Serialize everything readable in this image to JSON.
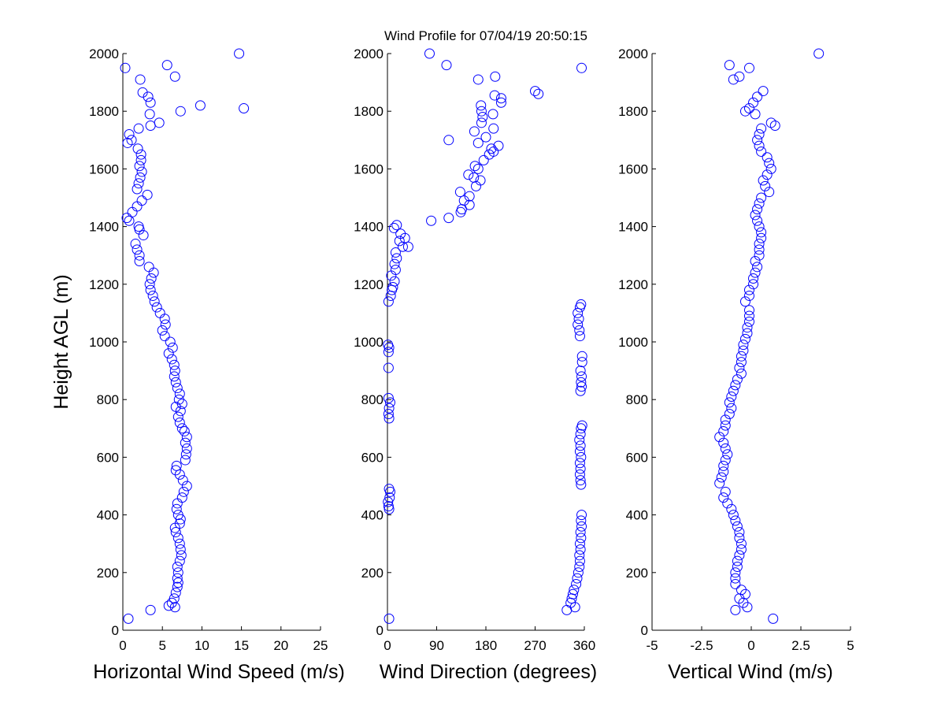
{
  "figure": {
    "title": "Wind Profile for  07/04/19 20:50:15",
    "ylabel": "Height AGL (m)"
  },
  "colors": {
    "marker": "#0000ff",
    "axis": "#000000",
    "background": "#ffffff"
  },
  "chart_data": [
    {
      "type": "scatter",
      "title": "Wind Profile for  07/04/19 20:50:15",
      "xlabel": "Horizontal Wind Speed (m/s)",
      "ylabel": "Height AGL (m)",
      "xlim": [
        0,
        25
      ],
      "ylim": [
        0,
        2000
      ],
      "xticks": [
        0,
        5,
        10,
        15,
        20,
        25
      ],
      "yticks": [
        0,
        200,
        400,
        600,
        800,
        1000,
        1200,
        1400,
        1600,
        1800,
        2000
      ],
      "xtick_labels": [
        "0",
        "5",
        "10",
        "15",
        "20",
        "25"
      ],
      "ytick_labels": [
        "0",
        "200",
        "400",
        "600",
        "800",
        "1000",
        "1200",
        "1400",
        "1600",
        "1800",
        "2000"
      ],
      "grid": false,
      "points": [
        [
          0.7,
          40
        ],
        [
          3.5,
          70
        ],
        [
          5.8,
          85
        ],
        [
          6.6,
          80
        ],
        [
          6.2,
          95
        ],
        [
          6.5,
          110
        ],
        [
          6.7,
          130
        ],
        [
          6.9,
          150
        ],
        [
          7.0,
          165
        ],
        [
          6.9,
          180
        ],
        [
          7.0,
          200
        ],
        [
          6.9,
          220
        ],
        [
          7.2,
          240
        ],
        [
          7.4,
          260
        ],
        [
          7.3,
          280
        ],
        [
          7.2,
          300
        ],
        [
          7.0,
          320
        ],
        [
          6.7,
          340
        ],
        [
          6.6,
          355
        ],
        [
          7.2,
          370
        ],
        [
          7.3,
          385
        ],
        [
          7.0,
          400
        ],
        [
          6.8,
          420
        ],
        [
          6.9,
          440
        ],
        [
          7.5,
          460
        ],
        [
          7.7,
          480
        ],
        [
          8.1,
          500
        ],
        [
          7.6,
          520
        ],
        [
          7.2,
          540
        ],
        [
          6.7,
          555
        ],
        [
          6.8,
          570
        ],
        [
          7.9,
          590
        ],
        [
          8.0,
          610
        ],
        [
          8.1,
          630
        ],
        [
          7.9,
          650
        ],
        [
          8.1,
          670
        ],
        [
          7.8,
          690
        ],
        [
          7.5,
          700
        ],
        [
          7.2,
          720
        ],
        [
          7.0,
          740
        ],
        [
          7.3,
          760
        ],
        [
          6.7,
          775
        ],
        [
          7.5,
          785
        ],
        [
          7.1,
          800
        ],
        [
          7.2,
          820
        ],
        [
          6.9,
          840
        ],
        [
          6.7,
          860
        ],
        [
          6.5,
          880
        ],
        [
          6.6,
          900
        ],
        [
          6.5,
          920
        ],
        [
          6.2,
          940
        ],
        [
          5.8,
          960
        ],
        [
          6.3,
          980
        ],
        [
          6.0,
          1000
        ],
        [
          5.3,
          1020
        ],
        [
          5.0,
          1040
        ],
        [
          5.4,
          1060
        ],
        [
          5.3,
          1080
        ],
        [
          4.7,
          1100
        ],
        [
          4.3,
          1120
        ],
        [
          4.0,
          1140
        ],
        [
          3.8,
          1160
        ],
        [
          3.5,
          1180
        ],
        [
          3.4,
          1200
        ],
        [
          3.6,
          1220
        ],
        [
          3.9,
          1240
        ],
        [
          3.3,
          1260
        ],
        [
          2.1,
          1280
        ],
        [
          2.1,
          1300
        ],
        [
          1.8,
          1320
        ],
        [
          1.6,
          1340
        ],
        [
          2.6,
          1370
        ],
        [
          2.1,
          1390
        ],
        [
          2.0,
          1400
        ],
        [
          0.8,
          1420
        ],
        [
          0.5,
          1430
        ],
        [
          1.2,
          1450
        ],
        [
          1.8,
          1470
        ],
        [
          2.4,
          1490
        ],
        [
          3.1,
          1510
        ],
        [
          1.8,
          1530
        ],
        [
          2.0,
          1550
        ],
        [
          2.2,
          1570
        ],
        [
          2.4,
          1590
        ],
        [
          2.1,
          1610
        ],
        [
          2.3,
          1630
        ],
        [
          2.3,
          1650
        ],
        [
          1.9,
          1670
        ],
        [
          0.6,
          1690
        ],
        [
          1.1,
          1700
        ],
        [
          0.8,
          1720
        ],
        [
          2.0,
          1740
        ],
        [
          3.5,
          1750
        ],
        [
          4.6,
          1760
        ],
        [
          3.4,
          1790
        ],
        [
          7.3,
          1800
        ],
        [
          15.3,
          1810
        ],
        [
          9.8,
          1820
        ],
        [
          3.5,
          1830
        ],
        [
          3.2,
          1850
        ],
        [
          2.5,
          1865
        ],
        [
          2.2,
          1910
        ],
        [
          6.6,
          1920
        ],
        [
          0.3,
          1950
        ],
        [
          5.6,
          1960
        ],
        [
          14.7,
          2000
        ]
      ]
    },
    {
      "type": "scatter",
      "xlabel": "Wind Direction (degrees)",
      "xlim": [
        0,
        360
      ],
      "ylim": [
        0,
        2000
      ],
      "xticks": [
        0,
        90,
        180,
        270,
        360
      ],
      "yticks": [
        0,
        200,
        400,
        600,
        800,
        1000,
        1200,
        1400,
        1600,
        1800,
        2000
      ],
      "xtick_labels": [
        "0",
        "90",
        "180",
        "270",
        "360"
      ],
      "ytick_labels": [
        "0",
        "200",
        "400",
        "600",
        "800",
        "1000",
        "1200",
        "1400",
        "1600",
        "1800",
        "2000"
      ],
      "grid": false,
      "points": [
        [
          3,
          40
        ],
        [
          328,
          70
        ],
        [
          343,
          80
        ],
        [
          335,
          95
        ],
        [
          337,
          110
        ],
        [
          339,
          125
        ],
        [
          341,
          140
        ],
        [
          345,
          160
        ],
        [
          347,
          180
        ],
        [
          349,
          200
        ],
        [
          351,
          220
        ],
        [
          352,
          240
        ],
        [
          351,
          260
        ],
        [
          353,
          280
        ],
        [
          352,
          300
        ],
        [
          354,
          320
        ],
        [
          353,
          340
        ],
        [
          355,
          360
        ],
        [
          354,
          380
        ],
        [
          355,
          400
        ],
        [
          3,
          420
        ],
        [
          2,
          430
        ],
        [
          1,
          445
        ],
        [
          4,
          460
        ],
        [
          5,
          480
        ],
        [
          3,
          490
        ],
        [
          354,
          505
        ],
        [
          353,
          520
        ],
        [
          352,
          540
        ],
        [
          353,
          560
        ],
        [
          352,
          580
        ],
        [
          354,
          600
        ],
        [
          352,
          620
        ],
        [
          353,
          640
        ],
        [
          351,
          660
        ],
        [
          353,
          680
        ],
        [
          354,
          700
        ],
        [
          356,
          710
        ],
        [
          3,
          735
        ],
        [
          2,
          750
        ],
        [
          3,
          770
        ],
        [
          5,
          790
        ],
        [
          2,
          805
        ],
        [
          353,
          830
        ],
        [
          355,
          845
        ],
        [
          354,
          860
        ],
        [
          355,
          880
        ],
        [
          353,
          900
        ],
        [
          356,
          930
        ],
        [
          356,
          950
        ],
        [
          2,
          910
        ],
        [
          2,
          965
        ],
        [
          3,
          980
        ],
        [
          1,
          990
        ],
        [
          352,
          1020
        ],
        [
          351,
          1040
        ],
        [
          348,
          1060
        ],
        [
          350,
          1080
        ],
        [
          348,
          1100
        ],
        [
          352,
          1120
        ],
        [
          354,
          1130
        ],
        [
          2,
          1140
        ],
        [
          6,
          1160
        ],
        [
          8,
          1180
        ],
        [
          10,
          1190
        ],
        [
          13,
          1210
        ],
        [
          7,
          1230
        ],
        [
          15,
          1250
        ],
        [
          13,
          1270
        ],
        [
          17,
          1290
        ],
        [
          15,
          1310
        ],
        [
          28,
          1330
        ],
        [
          38,
          1330
        ],
        [
          22,
          1350
        ],
        [
          32,
          1360
        ],
        [
          24,
          1375
        ],
        [
          12,
          1395
        ],
        [
          17,
          1405
        ],
        [
          80,
          1420
        ],
        [
          112,
          1430
        ],
        [
          134,
          1450
        ],
        [
          136,
          1460
        ],
        [
          150,
          1475
        ],
        [
          140,
          1490
        ],
        [
          150,
          1505
        ],
        [
          133,
          1520
        ],
        [
          170,
          1560
        ],
        [
          162,
          1540
        ],
        [
          158,
          1570
        ],
        [
          148,
          1580
        ],
        [
          166,
          1600
        ],
        [
          160,
          1610
        ],
        [
          176,
          1630
        ],
        [
          186,
          1650
        ],
        [
          194,
          1660
        ],
        [
          190,
          1670
        ],
        [
          203,
          1680
        ],
        [
          166,
          1690
        ],
        [
          180,
          1710
        ],
        [
          112,
          1700
        ],
        [
          159,
          1730
        ],
        [
          194,
          1740
        ],
        [
          172,
          1760
        ],
        [
          174,
          1780
        ],
        [
          193,
          1790
        ],
        [
          172,
          1800
        ],
        [
          171,
          1820
        ],
        [
          208,
          1830
        ],
        [
          208,
          1845
        ],
        [
          196,
          1855
        ],
        [
          276,
          1860
        ],
        [
          270,
          1870
        ],
        [
          166,
          1910
        ],
        [
          197,
          1920
        ],
        [
          355,
          1950
        ],
        [
          108,
          1960
        ],
        [
          77,
          2000
        ]
      ]
    },
    {
      "type": "scatter",
      "xlabel": "Vertical Wind (m/s)",
      "xlim": [
        -5,
        5
      ],
      "ylim": [
        0,
        2000
      ],
      "xticks": [
        -5,
        -2.5,
        0,
        2.5,
        5
      ],
      "yticks": [
        0,
        200,
        400,
        600,
        800,
        1000,
        1200,
        1400,
        1600,
        1800,
        2000
      ],
      "xtick_labels": [
        "-5",
        "-2.5",
        "0",
        "2.5",
        "5"
      ],
      "ytick_labels": [
        "0",
        "200",
        "400",
        "600",
        "800",
        "1000",
        "1200",
        "1400",
        "1600",
        "1800",
        "2000"
      ],
      "grid": false,
      "points": [
        [
          1.1,
          40
        ],
        [
          -0.8,
          70
        ],
        [
          -0.2,
          80
        ],
        [
          -0.4,
          95
        ],
        [
          -0.6,
          110
        ],
        [
          -0.3,
          125
        ],
        [
          -0.5,
          140
        ],
        [
          -0.8,
          160
        ],
        [
          -0.8,
          180
        ],
        [
          -0.8,
          200
        ],
        [
          -0.7,
          220
        ],
        [
          -0.7,
          240
        ],
        [
          -0.6,
          260
        ],
        [
          -0.5,
          280
        ],
        [
          -0.5,
          300
        ],
        [
          -0.6,
          320
        ],
        [
          -0.6,
          340
        ],
        [
          -0.7,
          360
        ],
        [
          -0.8,
          380
        ],
        [
          -0.9,
          400
        ],
        [
          -1.0,
          420
        ],
        [
          -1.2,
          440
        ],
        [
          -1.4,
          460
        ],
        [
          -1.3,
          480
        ],
        [
          -1.6,
          510
        ],
        [
          -1.5,
          530
        ],
        [
          -1.4,
          550
        ],
        [
          -1.4,
          570
        ],
        [
          -1.3,
          590
        ],
        [
          -1.2,
          610
        ],
        [
          -1.3,
          630
        ],
        [
          -1.4,
          650
        ],
        [
          -1.6,
          670
        ],
        [
          -1.4,
          690
        ],
        [
          -1.3,
          710
        ],
        [
          -1.3,
          730
        ],
        [
          -1.1,
          750
        ],
        [
          -1.0,
          770
        ],
        [
          -1.1,
          790
        ],
        [
          -1.0,
          810
        ],
        [
          -0.9,
          830
        ],
        [
          -0.8,
          850
        ],
        [
          -0.7,
          870
        ],
        [
          -0.5,
          890
        ],
        [
          -0.6,
          910
        ],
        [
          -0.5,
          930
        ],
        [
          -0.5,
          950
        ],
        [
          -0.4,
          970
        ],
        [
          -0.4,
          990
        ],
        [
          -0.3,
          1010
        ],
        [
          -0.2,
          1030
        ],
        [
          -0.2,
          1050
        ],
        [
          -0.1,
          1070
        ],
        [
          -0.1,
          1090
        ],
        [
          -0.1,
          1110
        ],
        [
          -0.3,
          1140
        ],
        [
          -0.1,
          1160
        ],
        [
          -0.1,
          1180
        ],
        [
          0.1,
          1200
        ],
        [
          0.1,
          1220
        ],
        [
          0.2,
          1240
        ],
        [
          0.3,
          1260
        ],
        [
          0.2,
          1280
        ],
        [
          0.4,
          1300
        ],
        [
          0.4,
          1320
        ],
        [
          0.4,
          1340
        ],
        [
          0.5,
          1360
        ],
        [
          0.5,
          1380
        ],
        [
          0.4,
          1400
        ],
        [
          0.3,
          1420
        ],
        [
          0.2,
          1440
        ],
        [
          0.3,
          1460
        ],
        [
          0.4,
          1480
        ],
        [
          0.5,
          1500
        ],
        [
          0.9,
          1520
        ],
        [
          0.7,
          1540
        ],
        [
          0.6,
          1560
        ],
        [
          0.8,
          1580
        ],
        [
          1.0,
          1600
        ],
        [
          0.9,
          1620
        ],
        [
          0.8,
          1640
        ],
        [
          0.5,
          1660
        ],
        [
          0.4,
          1680
        ],
        [
          0.3,
          1700
        ],
        [
          0.4,
          1720
        ],
        [
          0.5,
          1740
        ],
        [
          1.0,
          1760
        ],
        [
          1.2,
          1750
        ],
        [
          0.2,
          1790
        ],
        [
          -0.3,
          1800
        ],
        [
          -0.1,
          1810
        ],
        [
          0.1,
          1830
        ],
        [
          0.3,
          1850
        ],
        [
          0.6,
          1870
        ],
        [
          -0.9,
          1910
        ],
        [
          -0.6,
          1920
        ],
        [
          -1.1,
          1960
        ],
        [
          -0.1,
          1950
        ],
        [
          3.4,
          2000
        ]
      ]
    }
  ]
}
